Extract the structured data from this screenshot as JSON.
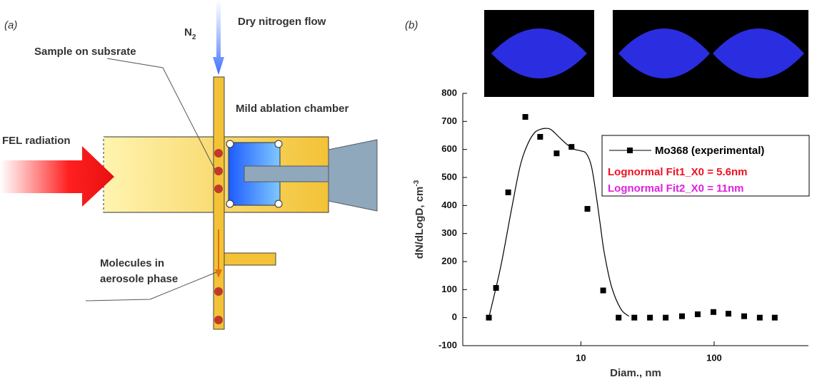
{
  "diagram": {
    "panel_label": "(a)",
    "n2": "N",
    "n2_sub": "2",
    "flow": "Dry nitrogen flow",
    "sample": "Sample on subsrate",
    "chamber": "Mild ablation chamber",
    "fel": "FEL radiation",
    "molecules_line1": "Molecules in",
    "molecules_line2": "aerosole phase"
  },
  "chart_data": {
    "type": "scatter",
    "panel_label": "(b)",
    "xlabel": "Diam., nm",
    "ylabel": "dN/dLogD, cm",
    "ylabel_sup": "-3",
    "xscale": "log",
    "xlim": [
      1.3,
      510
    ],
    "xticks": [
      10,
      100
    ],
    "ylim": [
      -100,
      800
    ],
    "yticks": [
      -100,
      0,
      100,
      200,
      300,
      400,
      500,
      600,
      700,
      800
    ],
    "series": [
      {
        "name": "Mo368 (experimental)",
        "color": "#000000",
        "marker": "square",
        "x": [
          2.04,
          2.31,
          2.85,
          3.83,
          4.95,
          6.58,
          8.51,
          11.2,
          14.7,
          19.2,
          25.2,
          33.0,
          43.3,
          57.4,
          75.3,
          98.8,
          128,
          168,
          220,
          285
        ],
        "values": [
          0,
          106,
          447,
          716,
          645,
          586,
          609,
          388,
          97,
          0,
          0,
          0,
          0,
          5,
          12,
          20,
          14,
          5,
          0,
          0
        ]
      },
      {
        "color": "#000000",
        "marker": "none",
        "x": [
          2.04,
          2.5,
          3,
          3.5,
          4,
          4.5,
          5,
          5.5,
          6,
          7,
          8,
          9,
          10,
          11,
          12,
          13,
          14,
          15,
          17,
          20,
          23
        ],
        "values": [
          0,
          180,
          380,
          540,
          620,
          660,
          672,
          675,
          670,
          640,
          615,
          600,
          595,
          585,
          540,
          440,
          330,
          230,
          110,
          30,
          5
        ]
      }
    ],
    "legend_notes": [
      {
        "text": "Lognormal Fit1_X0 = 5.6nm",
        "color": "#ee1122"
      },
      {
        "text": "Lognormal Fit2_X0 = 11nm",
        "color": "#e020e0"
      }
    ]
  }
}
